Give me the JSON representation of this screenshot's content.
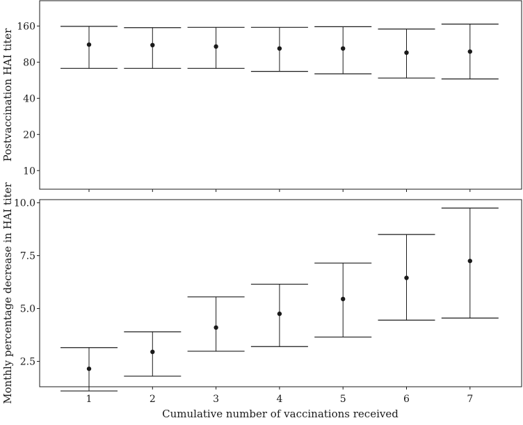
{
  "chart_data": [
    {
      "type": "errorbar",
      "panel": "top",
      "ylabel": "Postvaccination HAI titer",
      "xlabel": "",
      "categories": [
        "1",
        "2",
        "3",
        "4",
        "5",
        "6",
        "7"
      ],
      "y_scale": "log2",
      "yticks": [
        10,
        20,
        40,
        80,
        160
      ],
      "ylim": [
        7,
        260
      ],
      "grid": false,
      "points": [
        {
          "x": "1",
          "estimate": 112,
          "lower": 71,
          "upper": 159
        },
        {
          "x": "2",
          "estimate": 111,
          "lower": 71,
          "upper": 155
        },
        {
          "x": "3",
          "estimate": 108,
          "lower": 71,
          "upper": 156
        },
        {
          "x": "4",
          "estimate": 104,
          "lower": 67,
          "upper": 156
        },
        {
          "x": "5",
          "estimate": 104,
          "lower": 64,
          "upper": 158
        },
        {
          "x": "6",
          "estimate": 96,
          "lower": 59,
          "upper": 151
        },
        {
          "x": "7",
          "estimate": 98,
          "lower": 58,
          "upper": 166
        }
      ]
    },
    {
      "type": "errorbar",
      "panel": "bottom",
      "ylabel": "Monthly percentage decrease in HAI titer",
      "xlabel": "Cumulative number of vaccinations received",
      "categories": [
        "1",
        "2",
        "3",
        "4",
        "5",
        "6",
        "7"
      ],
      "yticks": [
        "2.5",
        "5.0",
        "7.5",
        "10.0"
      ],
      "ylim": [
        1.3,
        10.15
      ],
      "grid": false,
      "points": [
        {
          "x": "1",
          "estimate": 2.15,
          "lower": 1.1,
          "upper": 3.15
        },
        {
          "x": "2",
          "estimate": 2.95,
          "lower": 1.8,
          "upper": 3.9
        },
        {
          "x": "3",
          "estimate": 4.1,
          "lower": 2.98,
          "upper": 5.55
        },
        {
          "x": "4",
          "estimate": 4.75,
          "lower": 3.2,
          "upper": 6.15
        },
        {
          "x": "5",
          "estimate": 5.45,
          "lower": 3.65,
          "upper": 7.15
        },
        {
          "x": "6",
          "estimate": 6.45,
          "lower": 4.45,
          "upper": 8.5
        },
        {
          "x": "7",
          "estimate": 7.25,
          "lower": 4.55,
          "upper": 9.75
        }
      ]
    }
  ],
  "colors": {
    "ink": "#1a1a1a",
    "background": "#ffffff"
  }
}
